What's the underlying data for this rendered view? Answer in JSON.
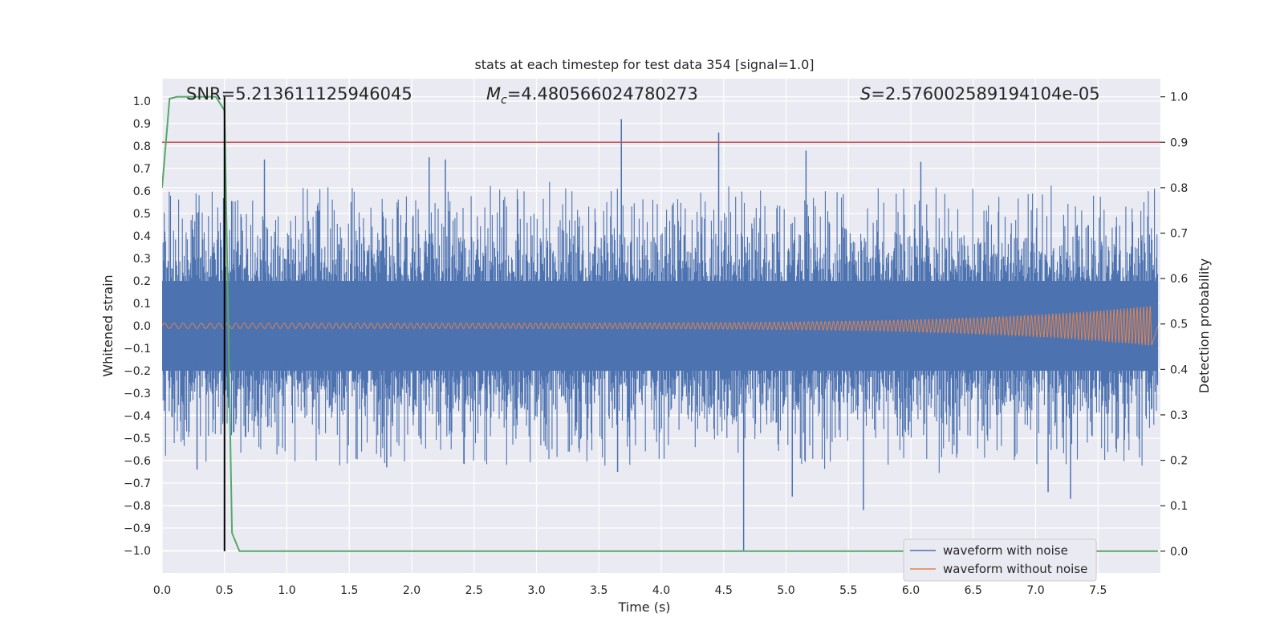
{
  "chart_data": {
    "type": "line",
    "title": "stats at each timestep for test data 354 [signal=1.0]",
    "xlabel": "Time (s)",
    "ylabel": "Whitened strain",
    "y2label": "Detection probability",
    "xlim": [
      0.0,
      8.0
    ],
    "ylim": [
      -1.1,
      1.1
    ],
    "y2lim": [
      -0.048,
      1.04
    ],
    "xticks": [
      "0.0",
      "0.5",
      "1.0",
      "1.5",
      "2.0",
      "2.5",
      "3.0",
      "3.5",
      "4.0",
      "4.5",
      "5.0",
      "5.5",
      "6.0",
      "6.5",
      "7.0",
      "7.5"
    ],
    "yticks": [
      "1.0",
      "0.9",
      "0.8",
      "0.7",
      "0.6",
      "0.5",
      "0.4",
      "0.3",
      "0.2",
      "0.1",
      "0.0",
      "−0.1",
      "−0.2",
      "−0.3",
      "−0.4",
      "−0.5",
      "−0.6",
      "−0.7",
      "−0.8",
      "−0.9",
      "−1.0"
    ],
    "y2ticks": [
      "1.0",
      "0.9",
      "0.8",
      "0.7",
      "0.6",
      "0.5",
      "0.4",
      "0.3",
      "0.2",
      "0.1",
      "0.0"
    ],
    "annotations": {
      "snr": "SNR=5.213611125946045",
      "mc_symbol": "M",
      "mc_sub": "c",
      "mc_value": "=4.480566024780273",
      "s_symbol": "S",
      "s_value": "=2.576002589194104e-05"
    },
    "legend": {
      "position": "lower-right",
      "entries": [
        "waveform with noise",
        "waveform without noise"
      ]
    },
    "threshold": 0.9,
    "marker_time": 0.5,
    "noise_envelope": {
      "typical_peak": 0.5,
      "spikes": [
        {
          "x": 0.82,
          "y": 0.74
        },
        {
          "x": 2.14,
          "y": 0.75
        },
        {
          "x": 2.27,
          "y": 0.74
        },
        {
          "x": 3.68,
          "y": 0.92
        },
        {
          "x": 4.46,
          "y": 0.86
        },
        {
          "x": 5.16,
          "y": 0.78
        },
        {
          "x": 6.08,
          "y": 0.73
        },
        {
          "x": 4.66,
          "y": -1.0
        },
        {
          "x": 5.62,
          "y": -0.82
        },
        {
          "x": 7.28,
          "y": -0.77
        },
        {
          "x": 0.28,
          "y": -0.64
        },
        {
          "x": 3.65,
          "y": -0.65
        },
        {
          "x": 5.05,
          "y": -0.76
        },
        {
          "x": 1.8,
          "y": -0.63
        },
        {
          "x": 7.1,
          "y": -0.74
        }
      ]
    },
    "series": [
      {
        "name": "waveform with noise",
        "color": "#4c72b0"
      },
      {
        "name": "waveform without noise",
        "color": "#dd8452",
        "amp_start": 0.012,
        "amp_end": 0.09,
        "t_start": 0.0,
        "t_end": 7.93
      },
      {
        "name": "detection probability",
        "color": "#55a868",
        "t": [
          0.0,
          0.06,
          0.12,
          0.2,
          0.3,
          0.43,
          0.5,
          0.56,
          0.62,
          7.98
        ],
        "p": [
          0.8,
          0.996,
          1.0,
          1.0,
          1.0,
          1.0,
          0.97,
          0.04,
          0.0,
          0.0
        ]
      },
      {
        "name": "threshold",
        "color": "#c44e52"
      }
    ]
  }
}
